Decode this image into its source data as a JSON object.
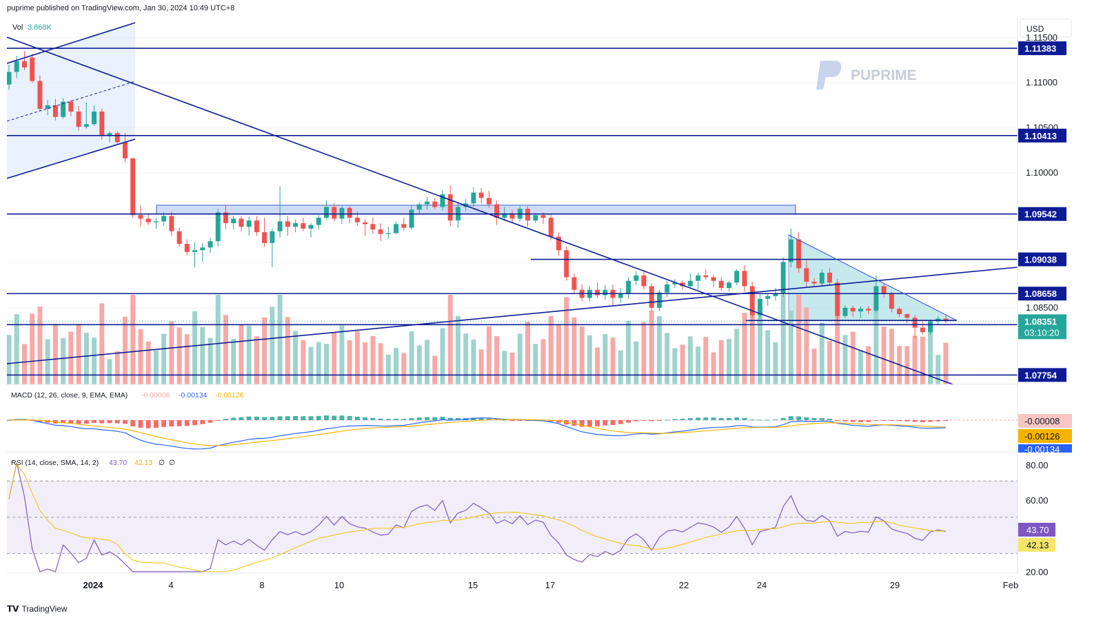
{
  "header": {
    "published_text": "puprime published on TradingView.com, Jan 30, 2024 10:49 UTC+8"
  },
  "brand": {
    "watermark": "PUPRIME",
    "footer": "TradingView"
  },
  "price_scale": {
    "currency": "USD",
    "ticks": [
      "1.11500",
      "1.11000",
      "1.10500",
      "1.10000",
      "1.09500",
      "1.09000",
      "1.08500"
    ],
    "level_labels": [
      "1.11383",
      "1.10413",
      "1.09542",
      "1.09038",
      "1.08658",
      "1.08313",
      "1.07754"
    ],
    "last_price": "1.08351",
    "countdown": "03:10:20"
  },
  "volume": {
    "label": "Vol",
    "value": "3.868K"
  },
  "macd": {
    "label": "MACD (12, 26, close, 9, EMA, EMA)",
    "v1": "-0.00008",
    "v2": "-0.00134",
    "v3": "-0.00126",
    "badge_hist": "-0.00008",
    "badge_signal": "-0.00126",
    "badge_macd": "-0.00134"
  },
  "rsi": {
    "label": "RSI (14, close, SMA, 14, 2)",
    "v1": "43.70",
    "v2": "42.13",
    "v3": "∅",
    "v4": "∅",
    "ticks": [
      "80.00",
      "60.00",
      "20.00"
    ],
    "badge_rsi": "43.70",
    "badge_ma": "42.13"
  },
  "time_axis": {
    "labels": [
      "2024",
      "4",
      "8",
      "10",
      "15",
      "17",
      "22",
      "24",
      "29",
      "Feb"
    ]
  },
  "colors": {
    "up": "#26a69a",
    "down": "#ef5350",
    "vol_up": "#9fd3cd",
    "vol_down": "#f7a9a7",
    "line": "#0d1c94",
    "macd": "#2962ff",
    "signal": "#f5b301",
    "rsi": "#7e57c2",
    "rsi_ma": "#f0c419"
  },
  "chart_data": {
    "type": "candlestick",
    "symbol_currency": "USD",
    "y_range": [
      1.0765,
      1.1172
    ],
    "horizontal_levels": [
      1.11383,
      1.10413,
      1.09542,
      1.09038,
      1.08658,
      1.08313,
      1.07754
    ],
    "last_price": 1.08351,
    "candles": [
      [
        1.1098,
        1.112,
        1.1092,
        1.1112
      ],
      [
        1.1112,
        1.113,
        1.1105,
        1.1124
      ],
      [
        1.1124,
        1.1135,
        1.1114,
        1.1117
      ],
      [
        1.1128,
        1.1132,
        1.11,
        1.1102
      ],
      [
        1.1102,
        1.1108,
        1.1068,
        1.1071
      ],
      [
        1.1071,
        1.1081,
        1.1064,
        1.1075
      ],
      [
        1.1075,
        1.1082,
        1.1058,
        1.1062
      ],
      [
        1.1062,
        1.1083,
        1.106,
        1.1079
      ],
      [
        1.1079,
        1.1081,
        1.1063,
        1.1068
      ],
      [
        1.1068,
        1.1074,
        1.1047,
        1.1051
      ],
      [
        1.1051,
        1.1078,
        1.1049,
        1.1054
      ],
      [
        1.1054,
        1.1075,
        1.1052,
        1.1068
      ],
      [
        1.1068,
        1.1071,
        1.1037,
        1.1041
      ],
      [
        1.1041,
        1.1046,
        1.1034,
        1.1044
      ],
      [
        1.1044,
        1.1046,
        1.1032,
        1.1034
      ],
      [
        1.1034,
        1.1044,
        1.1012,
        1.1016
      ],
      [
        1.1016,
        1.1017,
        1.095,
        1.0953
      ],
      [
        1.0953,
        1.0964,
        1.094,
        1.0949
      ],
      [
        1.0949,
        1.0954,
        1.0942,
        1.0945
      ],
      [
        1.0945,
        1.095,
        1.0938,
        1.0946
      ],
      [
        1.0946,
        1.0956,
        1.0941,
        1.0952
      ],
      [
        1.0952,
        1.0957,
        1.093,
        1.0935
      ],
      [
        1.0935,
        1.0939,
        1.0918,
        1.0921
      ],
      [
        1.0921,
        1.0926,
        1.0908,
        1.0912
      ],
      [
        1.0912,
        1.0923,
        1.0895,
        1.0914
      ],
      [
        1.0914,
        1.0922,
        1.0901,
        1.0917
      ],
      [
        1.0917,
        1.0928,
        1.0911,
        1.0924
      ],
      [
        1.0924,
        1.096,
        1.0918,
        1.0956
      ],
      [
        1.0956,
        1.0964,
        1.0938,
        1.0944
      ],
      [
        1.0944,
        1.0952,
        1.0937,
        1.0949
      ],
      [
        1.0949,
        1.0952,
        1.0935,
        1.094
      ],
      [
        1.094,
        1.0951,
        1.093,
        1.0947
      ],
      [
        1.0947,
        1.0952,
        1.093,
        1.0934
      ],
      [
        1.0934,
        1.095,
        1.0918,
        1.0922
      ],
      [
        1.0922,
        1.0938,
        1.0895,
        1.0935
      ],
      [
        1.0935,
        1.0985,
        1.0928,
        1.0946
      ],
      [
        1.0946,
        1.0952,
        1.093,
        1.094
      ],
      [
        1.094,
        1.0948,
        1.0934,
        1.0944
      ],
      [
        1.0944,
        1.095,
        1.0935,
        1.0938
      ],
      [
        1.0938,
        1.0944,
        1.0928,
        1.0942
      ],
      [
        1.0942,
        1.0953,
        1.0937,
        1.095
      ],
      [
        1.095,
        1.0969,
        1.0948,
        1.0962
      ],
      [
        1.0962,
        1.0966,
        1.0946,
        1.0949
      ],
      [
        1.0949,
        1.0963,
        1.0943,
        1.0961
      ],
      [
        1.0961,
        1.0963,
        1.0944,
        1.095
      ],
      [
        1.095,
        1.0957,
        1.0941,
        1.0945
      ],
      [
        1.0945,
        1.0948,
        1.093,
        1.0943
      ],
      [
        1.0943,
        1.095,
        1.0932,
        1.0937
      ],
      [
        1.0937,
        1.0944,
        1.0924,
        1.0932
      ],
      [
        1.0932,
        1.094,
        1.0927,
        1.0933
      ],
      [
        1.0933,
        1.0946,
        1.0932,
        1.0943
      ],
      [
        1.0943,
        1.095,
        1.0936,
        1.0939
      ],
      [
        1.0939,
        1.0964,
        1.0937,
        1.0959
      ],
      [
        1.0959,
        1.0967,
        1.0954,
        1.0965
      ],
      [
        1.0965,
        1.0973,
        1.0959,
        1.0968
      ],
      [
        1.0968,
        1.0972,
        1.096,
        1.0962
      ],
      [
        1.0962,
        1.0981,
        1.0958,
        1.0976
      ],
      [
        1.0976,
        1.0986,
        1.0941,
        1.0947
      ],
      [
        1.0947,
        1.0967,
        1.0939,
        1.0962
      ],
      [
        1.0962,
        1.0971,
        1.0957,
        1.0966
      ],
      [
        1.0966,
        1.0984,
        1.0962,
        1.0978
      ],
      [
        1.0978,
        1.0983,
        1.0966,
        1.0972
      ],
      [
        1.0972,
        1.098,
        1.0961,
        1.0965
      ],
      [
        1.0965,
        1.0969,
        1.0942,
        1.095
      ],
      [
        1.095,
        1.0962,
        1.0946,
        1.0955
      ],
      [
        1.0955,
        1.0959,
        1.0944,
        1.0949
      ],
      [
        1.0949,
        1.0964,
        1.0946,
        1.096
      ],
      [
        1.096,
        1.0963,
        1.094,
        1.0947
      ],
      [
        1.0947,
        1.0955,
        1.0944,
        1.0953
      ],
      [
        1.0953,
        1.0956,
        1.0943,
        1.095
      ],
      [
        1.095,
        1.0954,
        1.0925,
        1.0929
      ],
      [
        1.0929,
        1.0934,
        1.0908,
        1.0914
      ],
      [
        1.0914,
        1.0918,
        1.088,
        1.0884
      ],
      [
        1.0884,
        1.0888,
        1.0866,
        1.087
      ],
      [
        1.087,
        1.0876,
        1.0857,
        1.0861
      ],
      [
        1.0861,
        1.0874,
        1.0857,
        1.087
      ],
      [
        1.087,
        1.0878,
        1.0861,
        1.0864
      ],
      [
        1.0864,
        1.0875,
        1.0859,
        1.087
      ],
      [
        1.087,
        1.0876,
        1.0853,
        1.0861
      ],
      [
        1.0861,
        1.0872,
        1.0855,
        1.0866
      ],
      [
        1.0866,
        1.0884,
        1.086,
        1.088
      ],
      [
        1.088,
        1.0891,
        1.0875,
        1.0886
      ],
      [
        1.0886,
        1.089,
        1.087,
        1.0874
      ],
      [
        1.0874,
        1.0877,
        1.0846,
        1.085
      ],
      [
        1.085,
        1.087,
        1.0846,
        1.0867
      ],
      [
        1.0867,
        1.088,
        1.0862,
        1.0876
      ],
      [
        1.0876,
        1.0882,
        1.0872,
        1.0878
      ],
      [
        1.0878,
        1.088,
        1.087,
        1.0874
      ],
      [
        1.0874,
        1.0888,
        1.0871,
        1.088
      ],
      [
        1.088,
        1.0889,
        1.087,
        1.0886
      ],
      [
        1.0886,
        1.0893,
        1.0881,
        1.0884
      ],
      [
        1.0884,
        1.0887,
        1.0873,
        1.088
      ],
      [
        1.088,
        1.0884,
        1.0869,
        1.0872
      ],
      [
        1.0872,
        1.088,
        1.0868,
        1.0878
      ],
      [
        1.0878,
        1.0893,
        1.0875,
        1.0891
      ],
      [
        1.0891,
        1.0897,
        1.0868,
        1.0874
      ],
      [
        1.0874,
        1.0879,
        1.0838,
        1.0842
      ],
      [
        1.0842,
        1.0866,
        1.0838,
        1.086
      ],
      [
        1.086,
        1.0866,
        1.0852,
        1.0863
      ],
      [
        1.0863,
        1.0872,
        1.0858,
        1.0866
      ],
      [
        1.0866,
        1.0906,
        1.0862,
        1.0901
      ],
      [
        1.0901,
        1.0938,
        1.0895,
        1.0926
      ],
      [
        1.0926,
        1.0934,
        1.0889,
        1.0894
      ],
      [
        1.0894,
        1.0903,
        1.0872,
        1.0879
      ],
      [
        1.0879,
        1.0883,
        1.0873,
        1.0877
      ],
      [
        1.0877,
        1.0893,
        1.0873,
        1.0889
      ],
      [
        1.0889,
        1.0894,
        1.0876,
        1.0878
      ],
      [
        1.0878,
        1.0882,
        1.0835,
        1.0841
      ],
      [
        1.0841,
        1.0853,
        1.0838,
        1.085
      ],
      [
        1.085,
        1.0853,
        1.084,
        1.0846
      ],
      [
        1.0846,
        1.0852,
        1.0838,
        1.0849
      ],
      [
        1.0849,
        1.0852,
        1.0843,
        1.0847
      ],
      [
        1.0847,
        1.0886,
        1.0845,
        1.0874
      ],
      [
        1.0874,
        1.0877,
        1.0861,
        1.0866
      ],
      [
        1.0866,
        1.0868,
        1.0845,
        1.0849
      ],
      [
        1.0849,
        1.0851,
        1.084,
        1.0843
      ],
      [
        1.0843,
        1.0844,
        1.0833,
        1.0839
      ],
      [
        1.0839,
        1.0842,
        1.0816,
        1.0828
      ],
      [
        1.0828,
        1.0836,
        1.082,
        1.0823
      ],
      [
        1.0823,
        1.0837,
        1.082,
        1.0835
      ],
      [
        1.0835,
        1.0841,
        1.0831,
        1.0838
      ],
      [
        1.0838,
        1.0842,
        1.0833,
        1.0835
      ]
    ],
    "volume": {
      "label": "Vol",
      "last": "3.868K"
    },
    "macd": {
      "params": "12, 26, close, 9, EMA, EMA",
      "histogram": -8e-05,
      "macd": -0.00134,
      "signal": -0.00126
    },
    "rsi": {
      "params": "14, close, SMA, 14, 2",
      "rsi": 43.7,
      "rsi_ma": 42.13,
      "y_range": [
        20,
        80
      ]
    }
  }
}
